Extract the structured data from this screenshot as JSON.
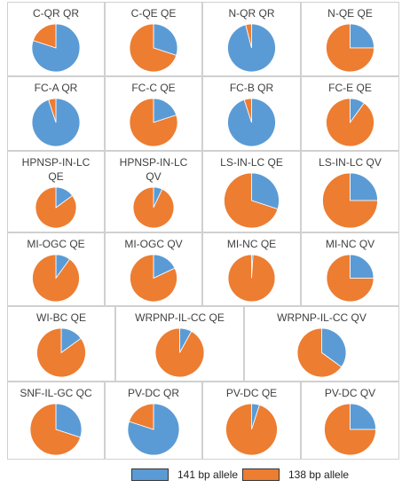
{
  "legend": {
    "series": [
      {
        "name": "141 bp allele",
        "color": "#5b9bd5"
      },
      {
        "name": "138 bp allele",
        "color": "#ed7d31"
      }
    ]
  },
  "chart_data": [
    {
      "type": "pie",
      "title": "C-QR QR",
      "values": [
        80,
        20
      ]
    },
    {
      "type": "pie",
      "title": "C-QE QE",
      "values": [
        30,
        70
      ]
    },
    {
      "type": "pie",
      "title": "N-QR QR",
      "values": [
        96,
        4
      ]
    },
    {
      "type": "pie",
      "title": "N-QE QE",
      "values": [
        25,
        75
      ]
    },
    {
      "type": "pie",
      "title": "FC-A QR",
      "values": [
        95,
        5
      ]
    },
    {
      "type": "pie",
      "title": "FC-C QE",
      "values": [
        20,
        80
      ]
    },
    {
      "type": "pie",
      "title": "FC-B QR",
      "values": [
        95,
        5
      ]
    },
    {
      "type": "pie",
      "title": "FC-E QE",
      "values": [
        10,
        90
      ]
    },
    {
      "type": "pie",
      "title": "HPNSP-IN-LC QE",
      "values": [
        15,
        85
      ]
    },
    {
      "type": "pie",
      "title": "HPNSP-IN-LC QV",
      "values": [
        7,
        93
      ]
    },
    {
      "type": "pie",
      "title": "LS-IN-LC QE",
      "values": [
        30,
        70
      ]
    },
    {
      "type": "pie",
      "title": "LS-IN-LC QV",
      "values": [
        25,
        75
      ]
    },
    {
      "type": "pie",
      "title": "MI-OGC QE",
      "values": [
        10,
        90
      ]
    },
    {
      "type": "pie",
      "title": "MI-OGC QV",
      "values": [
        18,
        82
      ]
    },
    {
      "type": "pie",
      "title": "MI-NC QE",
      "values": [
        1,
        99
      ]
    },
    {
      "type": "pie",
      "title": "MI-NC QV",
      "values": [
        25,
        75
      ]
    },
    {
      "type": "pie",
      "title": "WI-BC QE",
      "values": [
        15,
        85
      ]
    },
    {
      "type": "pie",
      "title": "WRPNP-IL-CC QE",
      "values": [
        8,
        92
      ]
    },
    {
      "type": "pie",
      "title": "WRPNP-IL-CC QV",
      "values": [
        35,
        65
      ]
    },
    {
      "type": "pie",
      "title": "SNF-IL-GC QC",
      "values": [
        30,
        70
      ]
    },
    {
      "type": "pie",
      "title": "PV-DC QR",
      "values": [
        80,
        20
      ]
    },
    {
      "type": "pie",
      "title": "PV-DC QE",
      "values": [
        5,
        95
      ]
    },
    {
      "type": "pie",
      "title": "PV-DC QV",
      "values": [
        25,
        75
      ]
    }
  ]
}
